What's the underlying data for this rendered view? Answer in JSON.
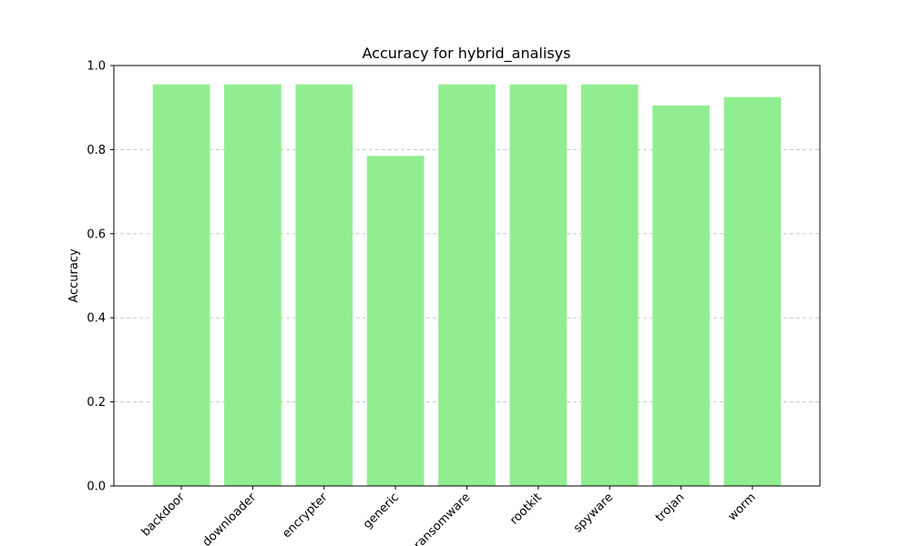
{
  "chart_data": {
    "type": "bar",
    "title": "Accuracy for hybrid_analisys",
    "xlabel": "",
    "ylabel": "Accuracy",
    "categories": [
      "backdoor",
      "downloader",
      "encrypter",
      "generic",
      "ransomware",
      "rootkit",
      "spyware",
      "trojan",
      "worm"
    ],
    "values": [
      0.955,
      0.955,
      0.955,
      0.785,
      0.955,
      0.955,
      0.955,
      0.905,
      0.925
    ],
    "ylim": [
      0,
      1.0
    ],
    "yticks": [
      "0.0",
      "0.2",
      "0.4",
      "0.6",
      "0.8",
      "1.0"
    ],
    "grid": "y-dashed",
    "bar_color": "#90ee90"
  }
}
